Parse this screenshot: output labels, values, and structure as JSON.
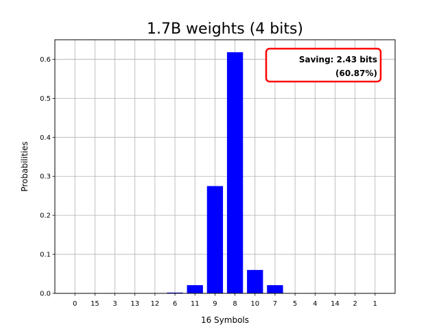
{
  "chart_data": {
    "type": "bar",
    "title": "1.7B weights (4 bits)",
    "xlabel": "16 Symbols",
    "ylabel": "Probabilities",
    "categories": [
      "0",
      "15",
      "3",
      "13",
      "12",
      "6",
      "11",
      "9",
      "8",
      "10",
      "7",
      "5",
      "4",
      "14",
      "2",
      "1"
    ],
    "values": [
      0.0,
      0.0,
      0.0,
      0.0,
      0.0,
      0.002,
      0.021,
      0.275,
      0.618,
      0.06,
      0.021,
      0.0,
      0.0,
      0.0,
      0.0,
      0.0
    ],
    "ylim": [
      0,
      0.65
    ],
    "yticks": [
      "0.0",
      "0.1",
      "0.2",
      "0.3",
      "0.4",
      "0.5",
      "0.6"
    ],
    "grid": true,
    "bar_color": "#0000ff",
    "annotation": {
      "line1": "Saving: 2.43 bits",
      "line2": "(60.87%)",
      "border_color": "#ff0000"
    }
  }
}
